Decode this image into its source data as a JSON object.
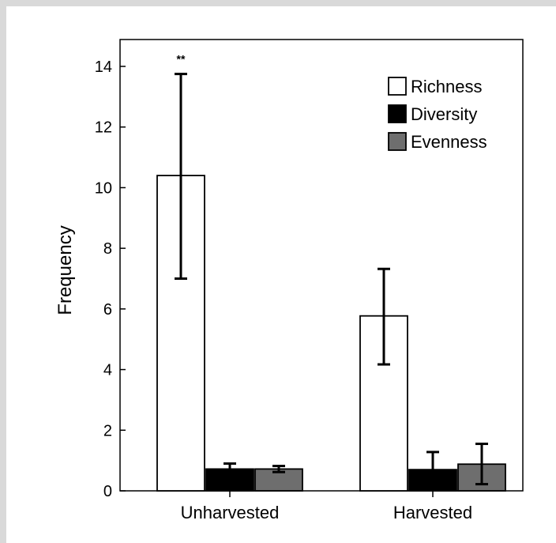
{
  "chart_data": {
    "type": "bar",
    "title": "",
    "xlabel": "",
    "ylabel": "Frequency",
    "ylim": [
      0,
      14
    ],
    "yticks": [
      0,
      2,
      4,
      6,
      8,
      10,
      12,
      14
    ],
    "categories": [
      "Unharvested",
      "Harvested"
    ],
    "series": [
      {
        "name": "Richness",
        "color": "#ffffff",
        "values": [
          10.4,
          5.77
        ],
        "err_low": [
          7.0,
          4.17
        ],
        "err_high": [
          13.75,
          7.32
        ]
      },
      {
        "name": "Diversity",
        "color": "#000000",
        "values": [
          0.72,
          0.7
        ],
        "err_low": [
          0.55,
          0.15
        ],
        "err_high": [
          0.9,
          1.28
        ]
      },
      {
        "name": "Evenness",
        "color": "#6e6e6e",
        "values": [
          0.72,
          0.88
        ],
        "err_low": [
          0.62,
          0.22
        ],
        "err_high": [
          0.82,
          1.55
        ]
      }
    ],
    "annotations": [
      {
        "text": "**",
        "category": "Unharvested",
        "series": "Richness"
      }
    ],
    "legend_position": "top-right",
    "grid": false
  }
}
